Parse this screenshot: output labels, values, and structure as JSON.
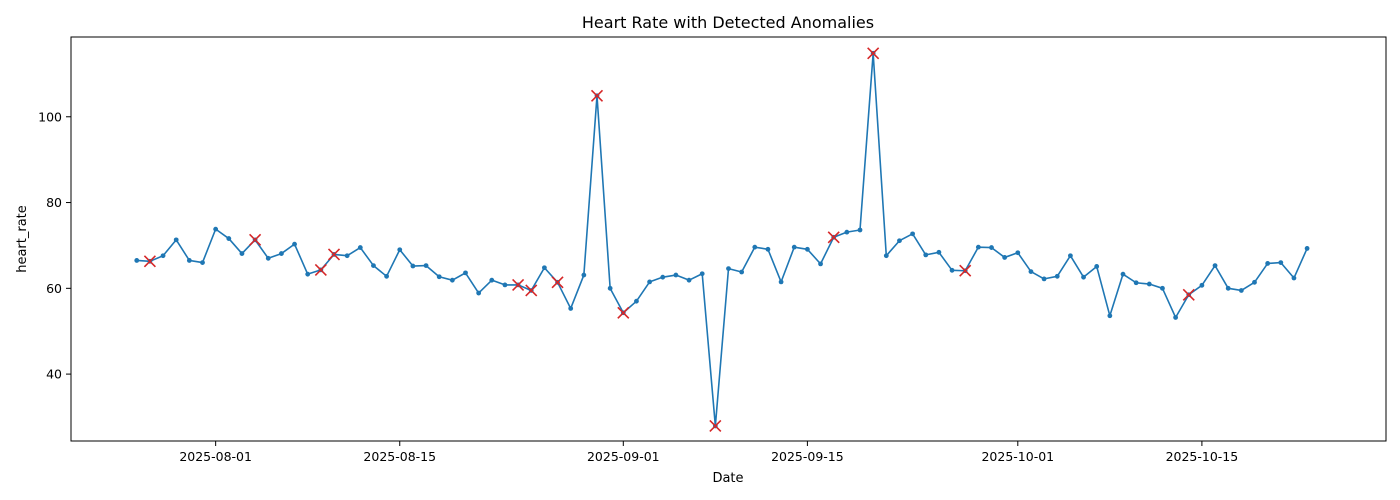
{
  "chart_data": {
    "type": "line",
    "title": "Heart Rate with Detected Anomalies",
    "xlabel": "Date",
    "ylabel": "heart_rate",
    "x_start": "2025-07-26",
    "xlim": [
      "2025-07-21",
      "2025-10-29"
    ],
    "ylim": [
      24.4,
      118.6
    ],
    "x_ticks": [
      "2025-08-01",
      "2025-08-15",
      "2025-09-01",
      "2025-09-15",
      "2025-10-01",
      "2025-10-15"
    ],
    "y_ticks": [
      40,
      60,
      80,
      100
    ],
    "grid": false,
    "series": [
      {
        "color": "#1f77b4",
        "values": [
          66.5,
          66.3,
          67.6,
          71.3,
          66.5,
          66.0,
          73.8,
          71.6,
          68.1,
          71.3,
          67.0,
          68.1,
          70.3,
          63.3,
          64.3,
          67.9,
          67.6,
          69.5,
          65.3,
          62.8,
          69.0,
          65.2,
          65.3,
          62.7,
          61.9,
          63.6,
          58.9,
          61.9,
          60.8,
          60.8,
          59.5,
          64.8,
          61.4,
          55.3,
          63.1,
          104.9,
          60.0,
          54.3,
          57.0,
          61.5,
          62.6,
          63.1,
          61.9,
          63.4,
          27.9,
          64.6,
          63.8,
          69.6,
          69.1,
          61.5,
          69.6,
          69.1,
          65.7,
          71.9,
          73.1,
          73.6,
          114.8,
          67.6,
          71.1,
          72.7,
          67.8,
          68.4,
          64.2,
          64.1,
          69.6,
          69.5,
          67.2,
          68.3,
          63.9,
          62.2,
          62.8,
          67.6,
          62.6,
          65.1,
          53.6,
          63.3,
          61.3,
          61.0,
          60.0,
          53.2,
          58.5,
          60.7,
          65.3,
          60.0,
          59.5,
          61.4,
          65.8,
          66.0,
          62.4,
          69.3
        ]
      }
    ],
    "anomalies": {
      "color": "#d62728",
      "points": [
        {
          "x": "2025-07-27",
          "y": 66.3
        },
        {
          "x": "2025-08-04",
          "y": 71.3
        },
        {
          "x": "2025-08-09",
          "y": 64.3
        },
        {
          "x": "2025-08-10",
          "y": 67.9
        },
        {
          "x": "2025-08-24",
          "y": 60.8
        },
        {
          "x": "2025-08-25",
          "y": 59.5
        },
        {
          "x": "2025-08-27",
          "y": 61.4
        },
        {
          "x": "2025-08-30",
          "y": 104.9
        },
        {
          "x": "2025-09-01",
          "y": 54.3
        },
        {
          "x": "2025-09-08",
          "y": 27.9
        },
        {
          "x": "2025-09-17",
          "y": 71.9
        },
        {
          "x": "2025-09-20",
          "y": 114.8
        },
        {
          "x": "2025-09-27",
          "y": 64.1
        },
        {
          "x": "2025-10-14",
          "y": 58.5
        }
      ]
    }
  }
}
